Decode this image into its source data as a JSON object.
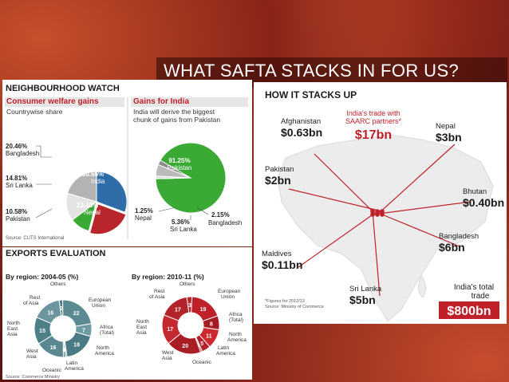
{
  "slide": {
    "title": "WHAT SAFTA STACKS IN FOR US?"
  },
  "colors": {
    "banner": "#2a0806",
    "accent_red": "#c0202a",
    "blue": "#2f6da9",
    "teal": "#5c8a92",
    "green": "#3aaa35"
  },
  "neighbourhood": {
    "heading": "NEIGHBOURHOOD WATCH",
    "left_title": "Consumer welfare gains",
    "left_sub": "Countrywise share",
    "right_title": "Gains for India",
    "right_sub_1": "India will derive the biggest",
    "right_sub_2": "chunk of gains from Pakistan",
    "source": "Source: CUTS International"
  },
  "exports": {
    "heading": "EXPORTS EVALUATION",
    "left_title": "By region: 2004-05 (%)",
    "right_title": "By region: 2010-11 (%)",
    "source": "Source: Commerce Ministry"
  },
  "stacks": {
    "heading": "HOW IT STACKS UP",
    "center_label_1": "India's trade with",
    "center_label_2": "SAARC partners*",
    "center_value": "$17bn",
    "total_label_1": "India's total",
    "total_label_2": "trade",
    "total_value": "$800bn",
    "footnote_1": "*Figures for 2012/13",
    "footnote_2": "Source: Ministry of Commerce"
  },
  "chart_data": [
    {
      "type": "pie",
      "title": "Consumer welfare gains",
      "subtitle": "Countrywise share",
      "labels": [
        "India",
        "Nepal",
        "Pakistan",
        "Sri Lanka",
        "Bangladesh"
      ],
      "values": [
        30.66,
        23.48,
        10.58,
        14.81,
        20.46
      ],
      "display": [
        "30.66%",
        "23.48%",
        "10.58%",
        "14.81%",
        "20.46%"
      ],
      "colors": [
        "#2f6da9",
        "#b8262c",
        "#3aaa35",
        "#e3e3e3",
        "#b3b3b3"
      ]
    },
    {
      "type": "pie",
      "title": "Gains for India",
      "labels": [
        "Pakistan",
        "Nepal",
        "Sri Lanka",
        "Bangladesh"
      ],
      "values": [
        91.25,
        1.25,
        5.36,
        2.15
      ],
      "display": [
        "91.25%",
        "1.25%",
        "5.36%",
        "2.15%"
      ],
      "colors": [
        "#3aaa35",
        "#dcdcdc",
        "#bbbbbb",
        "#8a8a8a"
      ]
    },
    {
      "type": "pie",
      "title": "By region: 2004-05 (%)",
      "labels": [
        "Others",
        "European Union",
        "Africa (Total)",
        "North America",
        "Latin America",
        "Oceanic",
        "West Asia",
        "North East Asia",
        "Rest of Asia"
      ],
      "values": [
        2,
        22,
        7,
        18,
        1,
        1,
        16,
        15,
        16
      ],
      "display": [
        "2",
        "22",
        "7",
        "18",
        "1",
        "1",
        "16",
        "15",
        "16"
      ]
    },
    {
      "type": "pie",
      "title": "By region: 2010-11 (%)",
      "labels": [
        "Others",
        "European Union",
        "Africa (Total)",
        "North America",
        "Latin America",
        "Oceanic",
        "West Asia",
        "North East Asia",
        "Rest of Asia"
      ],
      "values": [
        3,
        19,
        8,
        11,
        5,
        1,
        20,
        17,
        17
      ],
      "display": [
        "3",
        "19",
        "8",
        "11",
        "5",
        "1",
        "20",
        "17",
        "17"
      ]
    },
    {
      "type": "table",
      "title": "HOW IT STACKS UP",
      "rows": [
        {
          "country": "Afghanistan",
          "value": "$0.63bn",
          "bn": 0.63
        },
        {
          "country": "Nepal",
          "value": "$3bn",
          "bn": 3
        },
        {
          "country": "Pakistan",
          "value": "$2bn",
          "bn": 2
        },
        {
          "country": "Bhutan",
          "value": "$0.40bn",
          "bn": 0.4
        },
        {
          "country": "Maldives",
          "value": "$0.11bn",
          "bn": 0.11
        },
        {
          "country": "Bangladesh",
          "value": "$6bn",
          "bn": 6
        },
        {
          "country": "Sri Lanka",
          "value": "$5bn",
          "bn": 5
        }
      ]
    }
  ]
}
